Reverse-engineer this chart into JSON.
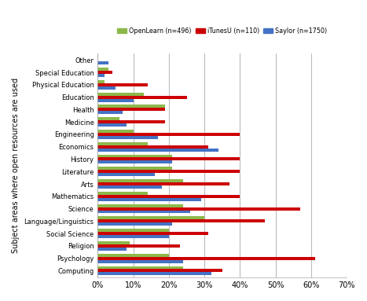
{
  "categories": [
    "Computing",
    "Psychology",
    "Religion",
    "Social Science",
    "Language/Linguistics",
    "Science",
    "Mathematics",
    "Arts",
    "Literature",
    "History",
    "Economics",
    "Engineering",
    "Medicine",
    "Health",
    "Education",
    "Physical Education",
    "Special Education",
    "Other"
  ],
  "series": {
    "OpenLearn (n=496)": [
      24,
      20,
      9,
      20,
      30,
      24,
      14,
      24,
      21,
      21,
      14,
      10,
      6,
      19,
      13,
      2,
      3,
      0
    ],
    "iTunesU (n=110)": [
      35,
      61,
      23,
      31,
      47,
      57,
      40,
      37,
      40,
      40,
      31,
      40,
      19,
      19,
      25,
      14,
      4,
      0
    ],
    "Saylor (n=1750)": [
      32,
      24,
      8,
      20,
      21,
      26,
      29,
      18,
      16,
      21,
      34,
      17,
      8,
      7,
      10,
      5,
      2,
      3
    ]
  },
  "colors": {
    "OpenLearn (n=496)": "#8DB84A",
    "iTunesU (n=110)": "#CC0000",
    "Saylor (n=1750)": "#4472C4"
  },
  "ylabel": "Subject areas where open resources are used",
  "xlim": [
    0,
    70
  ],
  "xticks": [
    0,
    10,
    20,
    30,
    40,
    50,
    60,
    70
  ],
  "xtick_labels": [
    "0%",
    "10%",
    "20%",
    "30%",
    "40%",
    "50%",
    "60%",
    "70%"
  ],
  "background_color": "#FFFFFF",
  "grid_color": "#BBBBBB",
  "bar_height": 0.25,
  "legend_order": [
    "OpenLearn (n=496)",
    "iTunesU (n=110)",
    "Saylor (n=1750)"
  ]
}
